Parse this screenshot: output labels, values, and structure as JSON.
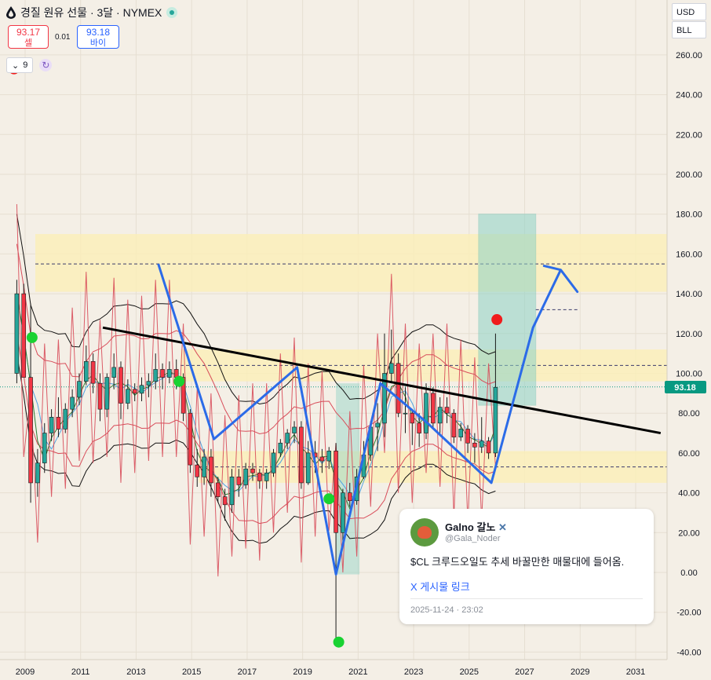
{
  "header": {
    "title": "경질 원유 선물 · 3달 · NYMEX",
    "sell_price": "93.17",
    "sell_label": "셀",
    "spread": "0.01",
    "buy_price": "93.18",
    "buy_label": "바이",
    "indicator_count": "9"
  },
  "toolbar": {
    "currency": "USD",
    "unit": "BLL"
  },
  "colors": {
    "background": "#f4efe6",
    "up_candle": "#26a69a",
    "down_candle": "#f23645",
    "pattern_line": "#2b6be8",
    "trendline": "#000000",
    "zone_fill": "#fbefb8",
    "target_box": "#8ed3c6",
    "price_tag": "#089981",
    "envelope": "#d84d5a"
  },
  "chart_data": {
    "type": "candlestick",
    "x_axis_labels": [
      "2009",
      "2011",
      "2013",
      "2015",
      "2017",
      "2019",
      "2021",
      "2023",
      "2025",
      "2027",
      "2029",
      "2031"
    ],
    "y_axis_labels": [
      "260.00",
      "240.00",
      "220.00",
      "200.00",
      "180.00",
      "160.00",
      "140.00",
      "120.00",
      "100.00",
      "80.00",
      "60.00",
      "40.00",
      "20.00",
      "0.00",
      "-20.00",
      "-40.00"
    ],
    "x_range": [
      2008.6,
      2032.4
    ],
    "y_range": [
      -42,
      272
    ],
    "current_price": "93.18",
    "candles": [
      {
        "t": 2008.7,
        "o": 100,
        "h": 147,
        "l": 95,
        "c": 140
      },
      {
        "t": 2008.95,
        "o": 140,
        "h": 145,
        "l": 100,
        "c": 98
      },
      {
        "t": 2009.2,
        "o": 98,
        "h": 135,
        "l": 35,
        "c": 45
      },
      {
        "t": 2009.45,
        "o": 45,
        "h": 62,
        "l": 38,
        "c": 55
      },
      {
        "t": 2009.7,
        "o": 55,
        "h": 75,
        "l": 50,
        "c": 70
      },
      {
        "t": 2009.95,
        "o": 70,
        "h": 82,
        "l": 66,
        "c": 78
      },
      {
        "t": 2010.2,
        "o": 78,
        "h": 88,
        "l": 68,
        "c": 72
      },
      {
        "t": 2010.45,
        "o": 72,
        "h": 85,
        "l": 70,
        "c": 82
      },
      {
        "t": 2010.7,
        "o": 82,
        "h": 92,
        "l": 78,
        "c": 88
      },
      {
        "t": 2010.95,
        "o": 88,
        "h": 100,
        "l": 84,
        "c": 96
      },
      {
        "t": 2011.2,
        "o": 96,
        "h": 114,
        "l": 94,
        "c": 106
      },
      {
        "t": 2011.45,
        "o": 106,
        "h": 110,
        "l": 90,
        "c": 95
      },
      {
        "t": 2011.7,
        "o": 95,
        "h": 100,
        "l": 76,
        "c": 82
      },
      {
        "t": 2011.95,
        "o": 82,
        "h": 100,
        "l": 78,
        "c": 98
      },
      {
        "t": 2012.2,
        "o": 98,
        "h": 110,
        "l": 92,
        "c": 103
      },
      {
        "t": 2012.45,
        "o": 103,
        "h": 106,
        "l": 77,
        "c": 85
      },
      {
        "t": 2012.7,
        "o": 85,
        "h": 97,
        "l": 82,
        "c": 92
      },
      {
        "t": 2012.95,
        "o": 92,
        "h": 95,
        "l": 86,
        "c": 90
      },
      {
        "t": 2013.2,
        "o": 90,
        "h": 98,
        "l": 86,
        "c": 94
      },
      {
        "t": 2013.45,
        "o": 94,
        "h": 100,
        "l": 88,
        "c": 96
      },
      {
        "t": 2013.7,
        "o": 96,
        "h": 110,
        "l": 92,
        "c": 102
      },
      {
        "t": 2013.95,
        "o": 102,
        "h": 105,
        "l": 92,
        "c": 98
      },
      {
        "t": 2014.2,
        "o": 98,
        "h": 106,
        "l": 95,
        "c": 102
      },
      {
        "t": 2014.45,
        "o": 102,
        "h": 107,
        "l": 92,
        "c": 98
      },
      {
        "t": 2014.7,
        "o": 98,
        "h": 100,
        "l": 76,
        "c": 80
      },
      {
        "t": 2014.95,
        "o": 80,
        "h": 82,
        "l": 50,
        "c": 54
      },
      {
        "t": 2015.2,
        "o": 54,
        "h": 62,
        "l": 43,
        "c": 48
      },
      {
        "t": 2015.45,
        "o": 48,
        "h": 62,
        "l": 44,
        "c": 58
      },
      {
        "t": 2015.7,
        "o": 58,
        "h": 62,
        "l": 38,
        "c": 45
      },
      {
        "t": 2015.95,
        "o": 45,
        "h": 48,
        "l": 35,
        "c": 38
      },
      {
        "t": 2016.2,
        "o": 38,
        "h": 42,
        "l": 26,
        "c": 34
      },
      {
        "t": 2016.45,
        "o": 34,
        "h": 52,
        "l": 30,
        "c": 48
      },
      {
        "t": 2016.7,
        "o": 48,
        "h": 52,
        "l": 38,
        "c": 44
      },
      {
        "t": 2016.95,
        "o": 44,
        "h": 55,
        "l": 42,
        "c": 52
      },
      {
        "t": 2017.2,
        "o": 52,
        "h": 55,
        "l": 46,
        "c": 50
      },
      {
        "t": 2017.45,
        "o": 50,
        "h": 52,
        "l": 42,
        "c": 46
      },
      {
        "t": 2017.7,
        "o": 46,
        "h": 52,
        "l": 42,
        "c": 50
      },
      {
        "t": 2017.95,
        "o": 50,
        "h": 62,
        "l": 48,
        "c": 60
      },
      {
        "t": 2018.2,
        "o": 60,
        "h": 67,
        "l": 58,
        "c": 65
      },
      {
        "t": 2018.45,
        "o": 65,
        "h": 72,
        "l": 62,
        "c": 70
      },
      {
        "t": 2018.7,
        "o": 70,
        "h": 76,
        "l": 65,
        "c": 73
      },
      {
        "t": 2018.95,
        "o": 73,
        "h": 76,
        "l": 42,
        "c": 45
      },
      {
        "t": 2019.2,
        "o": 45,
        "h": 66,
        "l": 44,
        "c": 60
      },
      {
        "t": 2019.45,
        "o": 60,
        "h": 66,
        "l": 50,
        "c": 58
      },
      {
        "t": 2019.7,
        "o": 58,
        "h": 62,
        "l": 50,
        "c": 56
      },
      {
        "t": 2019.95,
        "o": 56,
        "h": 63,
        "l": 52,
        "c": 61
      },
      {
        "t": 2020.2,
        "o": 61,
        "h": 65,
        "l": -37,
        "c": 20
      },
      {
        "t": 2020.45,
        "o": 20,
        "h": 42,
        "l": 15,
        "c": 40
      },
      {
        "t": 2020.7,
        "o": 40,
        "h": 45,
        "l": 33,
        "c": 36
      },
      {
        "t": 2020.95,
        "o": 36,
        "h": 52,
        "l": 34,
        "c": 48
      },
      {
        "t": 2021.2,
        "o": 48,
        "h": 66,
        "l": 47,
        "c": 59
      },
      {
        "t": 2021.45,
        "o": 59,
        "h": 76,
        "l": 56,
        "c": 73
      },
      {
        "t": 2021.7,
        "o": 73,
        "h": 85,
        "l": 61,
        "c": 75
      },
      {
        "t": 2021.95,
        "o": 75,
        "h": 120,
        "l": 68,
        "c": 100
      },
      {
        "t": 2022.2,
        "o": 100,
        "h": 122,
        "l": 95,
        "c": 105
      },
      {
        "t": 2022.45,
        "o": 105,
        "h": 110,
        "l": 78,
        "c": 80
      },
      {
        "t": 2022.7,
        "o": 80,
        "h": 93,
        "l": 70,
        "c": 80
      },
      {
        "t": 2022.95,
        "o": 80,
        "h": 82,
        "l": 64,
        "c": 75
      },
      {
        "t": 2023.2,
        "o": 75,
        "h": 80,
        "l": 63,
        "c": 70
      },
      {
        "t": 2023.45,
        "o": 70,
        "h": 95,
        "l": 67,
        "c": 90
      },
      {
        "t": 2023.7,
        "o": 90,
        "h": 93,
        "l": 72,
        "c": 75
      },
      {
        "t": 2023.95,
        "o": 75,
        "h": 88,
        "l": 70,
        "c": 83
      },
      {
        "t": 2024.2,
        "o": 83,
        "h": 88,
        "l": 75,
        "c": 80
      },
      {
        "t": 2024.45,
        "o": 80,
        "h": 82,
        "l": 65,
        "c": 68
      },
      {
        "t": 2024.7,
        "o": 68,
        "h": 75,
        "l": 66,
        "c": 72
      },
      {
        "t": 2024.95,
        "o": 72,
        "h": 74,
        "l": 60,
        "c": 65
      },
      {
        "t": 2025.2,
        "o": 65,
        "h": 70,
        "l": 55,
        "c": 63
      },
      {
        "t": 2025.45,
        "o": 63,
        "h": 78,
        "l": 60,
        "c": 66
      },
      {
        "t": 2025.7,
        "o": 66,
        "h": 68,
        "l": 57,
        "c": 60
      },
      {
        "t": 2025.95,
        "o": 60,
        "h": 120,
        "l": 58,
        "c": 93
      }
    ],
    "zones": [
      {
        "from": 141,
        "to": 170
      },
      {
        "from": 96,
        "to": 112
      },
      {
        "from": 45,
        "to": 61
      }
    ],
    "dashed_levels": [
      155,
      104,
      53
    ],
    "trendline": [
      {
        "t": 2011.8,
        "v": 123
      },
      {
        "t": 2031.9,
        "v": 70
      }
    ],
    "pattern_path": [
      {
        "t": 2013.8,
        "v": 155
      },
      {
        "t": 2015.8,
        "v": 67
      },
      {
        "t": 2018.8,
        "v": 103
      },
      {
        "t": 2020.2,
        "v": -1
      },
      {
        "t": 2021.8,
        "v": 95
      },
      {
        "t": 2023.5,
        "v": 75
      },
      {
        "t": 2025.8,
        "v": 45
      },
      {
        "t": 2027.3,
        "v": 123
      },
      {
        "t": 2028.3,
        "v": 152
      }
    ],
    "arrow_head": [
      {
        "t": 2027.7,
        "v": 154
      },
      {
        "t": 2028.3,
        "v": 152
      },
      {
        "t": 2028.9,
        "v": 141
      }
    ],
    "target_box": {
      "t_from": 2025.2,
      "t_to": 2027.4,
      "v_from": 84,
      "v_to": 180
    },
    "history_box": {
      "t_from": 2020.2,
      "t_to": 2021.05,
      "v_from": -1,
      "v_to": 95
    },
    "markers": [
      {
        "t": 2008.6,
        "v": 253,
        "color": "#f01c1c"
      },
      {
        "t": 2009.25,
        "v": 118,
        "color": "#19d232"
      },
      {
        "t": 2014.55,
        "v": 96,
        "color": "#19d232"
      },
      {
        "t": 2019.95,
        "v": 37,
        "color": "#19d232"
      },
      {
        "t": 2020.3,
        "v": -35,
        "color": "#19d232"
      },
      {
        "t": 2026.0,
        "v": 127,
        "color": "#f01c1c"
      }
    ]
  },
  "tweet": {
    "name": "Galno 갈노",
    "handle": "@Gala_Noder",
    "text": "$CL 크루드오일도 추세 바꿀만한 매물대에 들어옴.",
    "link": "X 게시물 링크",
    "date": "2025-11-24 · 23:02"
  }
}
